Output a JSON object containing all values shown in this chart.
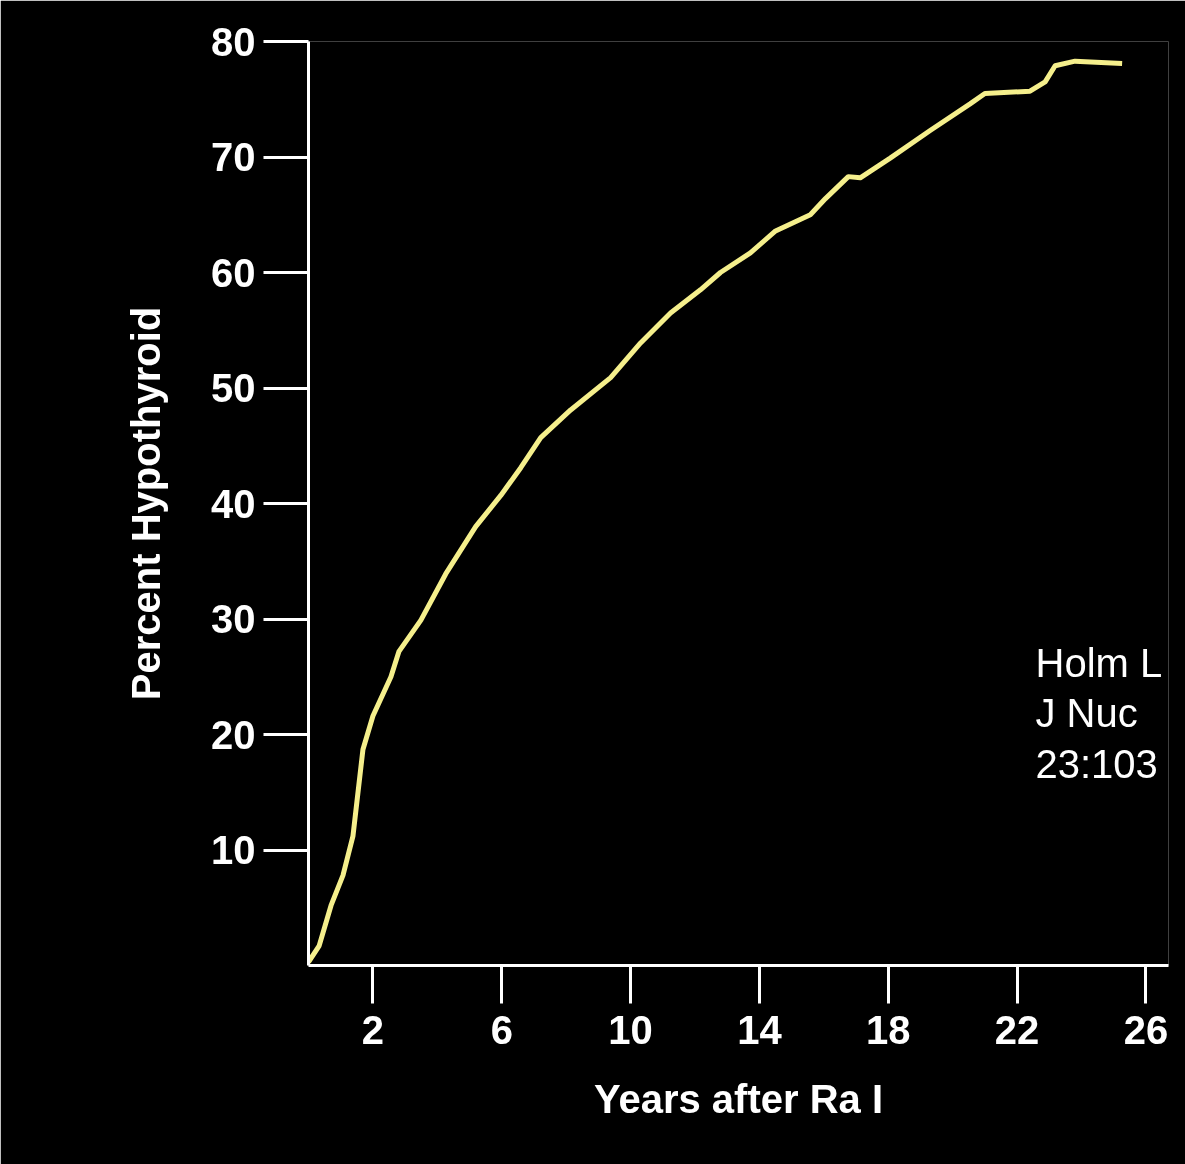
{
  "chart_data": {
    "type": "line",
    "xlabel": "Years after Ra I",
    "ylabel": "Percent Hypothyroid",
    "annotations": [
      "Holm L\nJ Nuc\n23:103"
    ],
    "x": [
      0,
      0.33,
      0.7,
      1.07,
      1.38,
      1.69,
      2,
      2.56,
      2.81,
      3.49,
      4.26,
      5.19,
      5.97,
      6.59,
      7.21,
      8.14,
      9.38,
      10.31,
      11.24,
      12.17,
      12.79,
      13.72,
      14.5,
      15.58,
      16.05,
      16.76,
      17.13,
      18.06,
      19.3,
      20.54,
      21,
      22.4,
      22.87,
      23.18,
      23.8,
      25.26
    ],
    "series": [
      {
        "color": "#f5ef8c",
        "values": [
          0.3,
          1.7,
          5.2,
          7.8,
          11.2,
          18.7,
          21.6,
          25,
          27.2,
          29.9,
          33.9,
          38,
          40.7,
          43.1,
          45.7,
          48.1,
          50.9,
          53.9,
          56.5,
          58.5,
          60,
          61.7,
          63.6,
          65,
          66.4,
          68.3,
          68.2,
          69.9,
          72.3,
          74.6,
          75.5,
          75.7,
          76.5,
          77.9,
          78.3,
          78.1
        ]
      }
    ],
    "xlim": [
      0,
      26.7
    ],
    "ylim": [
      0,
      80
    ],
    "xticks": [
      2,
      6,
      10,
      14,
      18,
      22,
      26
    ],
    "yticks": [
      10,
      20,
      30,
      40,
      50,
      60,
      70,
      80
    ],
    "grid": false,
    "marker": "none",
    "line_style": "solid"
  }
}
